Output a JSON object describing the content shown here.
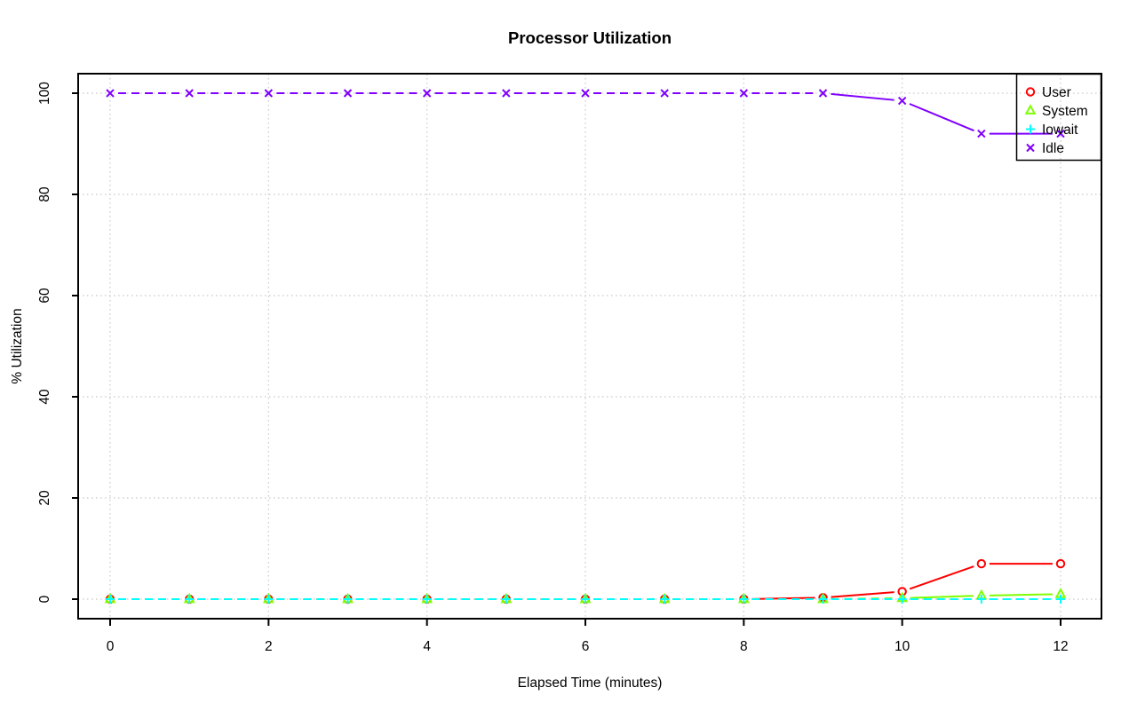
{
  "chart_data": {
    "type": "line",
    "title": "Processor Utilization",
    "xlabel": "Elapsed Time (minutes)",
    "ylabel": "% Utilization",
    "x": [
      0,
      1,
      2,
      3,
      4,
      5,
      6,
      7,
      8,
      9,
      10,
      11,
      12
    ],
    "xticks": [
      0,
      2,
      4,
      6,
      8,
      10,
      12
    ],
    "yticks": [
      0,
      20,
      40,
      60,
      80,
      100
    ],
    "xlim": [
      0,
      12
    ],
    "ylim": [
      0,
      100
    ],
    "grid": {
      "shown": true,
      "style": "dotted"
    },
    "legend_position": "top-right",
    "series": [
      {
        "name": "User",
        "color": "#FF0000",
        "marker": "circle",
        "dash": "9,6",
        "dashed_segments": [
          0,
          1,
          2,
          3,
          4,
          5,
          6,
          7
        ],
        "values": [
          0,
          0,
          0,
          0,
          0,
          0,
          0,
          0,
          0,
          0.3,
          1.5,
          7,
          7
        ]
      },
      {
        "name": "System",
        "color": "#7FFF00",
        "marker": "triangle",
        "dash": "9,6",
        "dashed_segments": [
          0,
          1,
          2,
          3,
          4,
          5,
          6,
          7,
          8,
          9
        ],
        "values": [
          0,
          0,
          0,
          0,
          0,
          0,
          0,
          0,
          0,
          0,
          0.2,
          0.7,
          1
        ]
      },
      {
        "name": "Iowait",
        "color": "#00FFFF",
        "marker": "plus",
        "dash": "9,6",
        "dashed_segments": [
          0,
          1,
          2,
          3,
          4,
          5,
          6,
          7,
          8,
          9,
          10,
          11
        ],
        "values": [
          0,
          0,
          0,
          0,
          0,
          0,
          0,
          0,
          0,
          0,
          0,
          0,
          0
        ]
      },
      {
        "name": "Idle",
        "color": "#8000FF",
        "marker": "x",
        "dash": "9,6",
        "dashed_segments": [
          0,
          1,
          2,
          3,
          4,
          5,
          6,
          7,
          8
        ],
        "values": [
          100,
          100,
          100,
          100,
          100,
          100,
          100,
          100,
          100,
          100,
          98.5,
          92,
          92
        ]
      }
    ]
  },
  "style": {
    "background": "#FFFFFF",
    "axis_color": "#000000",
    "grid_color": "#C8C8C8",
    "text_color": "#000000"
  }
}
